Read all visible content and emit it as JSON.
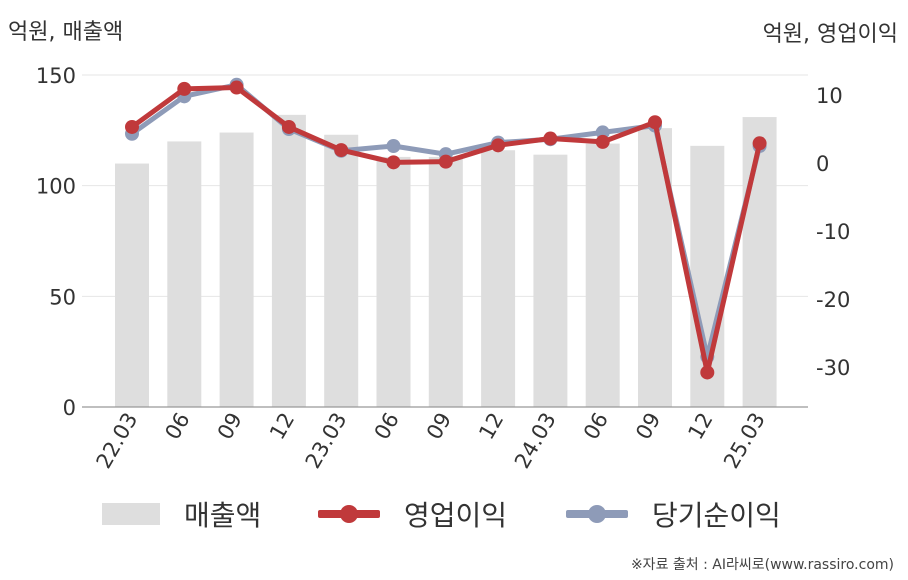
{
  "unit_left": "억원, 매출액",
  "unit_right": "억원, 영업이익",
  "source": "※자료 출처 : AI라씨로(www.rassiro.com)",
  "colors": {
    "bar": "#dedede",
    "operating": "#c0393b",
    "net": "#8e9bb8"
  },
  "legend": [
    {
      "label": "매출액",
      "type": "bar",
      "color": "#dedede"
    },
    {
      "label": "영업이익",
      "type": "line",
      "color": "#c0393b"
    },
    {
      "label": "당기순이익",
      "type": "line",
      "color": "#8e9bb8"
    }
  ],
  "chart_data": {
    "type": "bar",
    "categories": [
      "22.03",
      "06",
      "09",
      "12",
      "23.03",
      "06",
      "09",
      "12",
      "24.03",
      "06",
      "09",
      "12",
      "25.03"
    ],
    "y_left": {
      "label": "억원, 매출액",
      "ticks": [
        0,
        50,
        100,
        150
      ],
      "lim": [
        0,
        150
      ]
    },
    "y_right": {
      "label": "억원, 영업이익",
      "ticks": [
        10,
        0,
        -10,
        -20,
        -30
      ],
      "lim": [
        -36,
        13
      ]
    },
    "series": [
      {
        "name": "매출액",
        "type": "bar",
        "axis": "left",
        "values": [
          110,
          120,
          124,
          132,
          123,
          113,
          113,
          116,
          114,
          119,
          126,
          118,
          131
        ]
      },
      {
        "name": "당기순이익",
        "type": "line",
        "axis": "right",
        "values": [
          4.3,
          9.8,
          11.5,
          5.0,
          1.8,
          2.5,
          1.3,
          3.0,
          3.5,
          4.5,
          5.5,
          -28.5,
          2.5
        ]
      },
      {
        "name": "영업이익",
        "type": "line",
        "axis": "right",
        "values": [
          5.3,
          10.9,
          11.1,
          5.3,
          1.9,
          0.1,
          0.2,
          2.6,
          3.6,
          3.1,
          6.0,
          -30.8,
          2.9
        ]
      }
    ]
  }
}
